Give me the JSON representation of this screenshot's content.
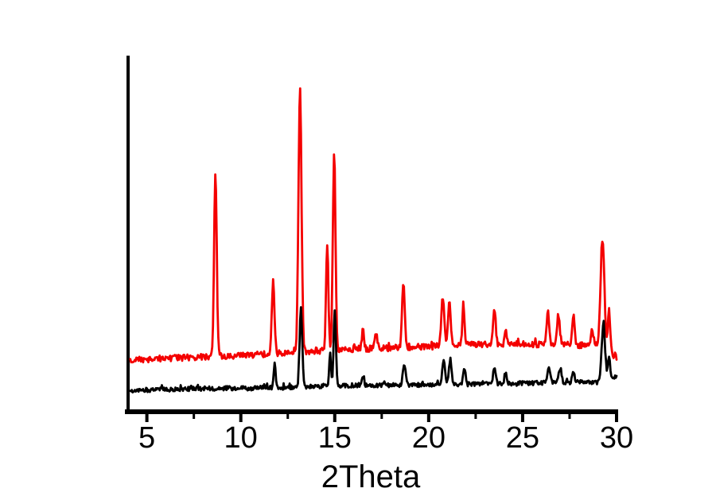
{
  "chart_data": {
    "type": "line",
    "title": "",
    "xlabel": "2Theta",
    "ylabel": "",
    "y_unit": "arbitrary intensity (no y-axis ticks shown)",
    "x_range": [
      4.0,
      30.0
    ],
    "ylim": [
      0,
      100
    ],
    "x_ticks": [
      5,
      10,
      15,
      20,
      25,
      30
    ],
    "x_minor_ticks": [
      7.5,
      12.5,
      17.5,
      22.5,
      27.5
    ],
    "grid": false,
    "legend": "none",
    "axis_color": "#000000",
    "background_color": "#ffffff",
    "series": [
      {
        "name": "red-pattern",
        "color": "#f40000",
        "x_start": 4.12,
        "x_end": 30.0,
        "noise_amplitude": 0.9,
        "baseline": [
          [
            4.12,
            14.5
          ],
          [
            8,
            15.4
          ],
          [
            11,
            16.1
          ],
          [
            13.5,
            17.0
          ],
          [
            16,
            17.6
          ],
          [
            19,
            18.1
          ],
          [
            22,
            18.75
          ],
          [
            26,
            19.0
          ],
          [
            29,
            18.5
          ],
          [
            30,
            15.5
          ]
        ],
        "peaks": [
          [
            8.65,
            51,
            0.07
          ],
          [
            11.72,
            20,
            0.07
          ],
          [
            13.15,
            74,
            0.08
          ],
          [
            14.6,
            30,
            0.06
          ],
          [
            14.97,
            55,
            0.07
          ],
          [
            16.5,
            5,
            0.06
          ],
          [
            17.2,
            4.5,
            0.06
          ],
          [
            18.65,
            18,
            0.07
          ],
          [
            20.75,
            14,
            0.08
          ],
          [
            21.1,
            13,
            0.07
          ],
          [
            21.85,
            11.5,
            0.06
          ],
          [
            23.5,
            9.5,
            0.07
          ],
          [
            24.1,
            4.5,
            0.06
          ],
          [
            26.35,
            9,
            0.07
          ],
          [
            26.9,
            8,
            0.07
          ],
          [
            27.7,
            8.5,
            0.07
          ],
          [
            28.7,
            4.5,
            0.07
          ],
          [
            29.25,
            31,
            0.1
          ],
          [
            29.6,
            12,
            0.06
          ]
        ]
      },
      {
        "name": "black-pattern",
        "color": "#000000",
        "x_start": 4.12,
        "x_end": 30.0,
        "noise_amplitude": 0.62,
        "baseline": [
          [
            4.12,
            6.0
          ],
          [
            8,
            6.5
          ],
          [
            12,
            6.7
          ],
          [
            16,
            7.4
          ],
          [
            20,
            7.6
          ],
          [
            24,
            7.8
          ],
          [
            27,
            8.3
          ],
          [
            29,
            8.3
          ],
          [
            29.8,
            9.0
          ],
          [
            30,
            10.0
          ]
        ],
        "peaks": [
          [
            11.8,
            6.5,
            0.06
          ],
          [
            13.2,
            22,
            0.07
          ],
          [
            14.75,
            9,
            0.05
          ],
          [
            15.0,
            21,
            0.06
          ],
          [
            16.5,
            2.5,
            0.05
          ],
          [
            18.7,
            6,
            0.07
          ],
          [
            20.8,
            6.5,
            0.08
          ],
          [
            21.15,
            7,
            0.07
          ],
          [
            21.9,
            4.5,
            0.06
          ],
          [
            23.5,
            4.5,
            0.07
          ],
          [
            24.1,
            3,
            0.06
          ],
          [
            26.4,
            4.5,
            0.07
          ],
          [
            27.0,
            4,
            0.07
          ],
          [
            27.7,
            2.5,
            0.06
          ],
          [
            29.3,
            16,
            0.09
          ],
          [
            29.6,
            7,
            0.06
          ]
        ]
      }
    ]
  }
}
